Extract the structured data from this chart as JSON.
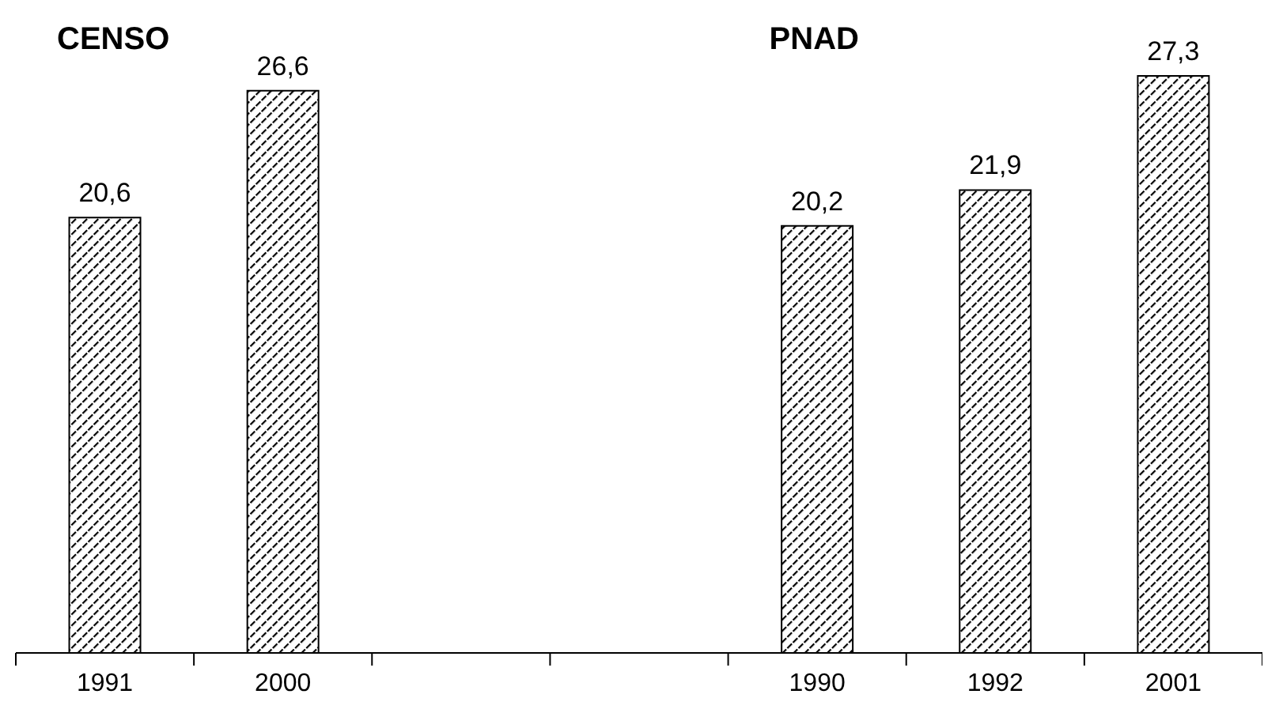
{
  "chart_data": {
    "type": "bar",
    "categories": [
      "1991",
      "2000",
      null,
      null,
      "1990",
      "1992",
      "2001"
    ],
    "values": [
      20.6,
      26.6,
      null,
      null,
      20.2,
      21.9,
      27.3
    ],
    "value_labels": [
      "20,6",
      "26,6",
      null,
      null,
      "20,2",
      "21,9",
      "27,3"
    ],
    "color": "#000000",
    "annotations": [
      "CENSO",
      "PNAD"
    ]
  }
}
